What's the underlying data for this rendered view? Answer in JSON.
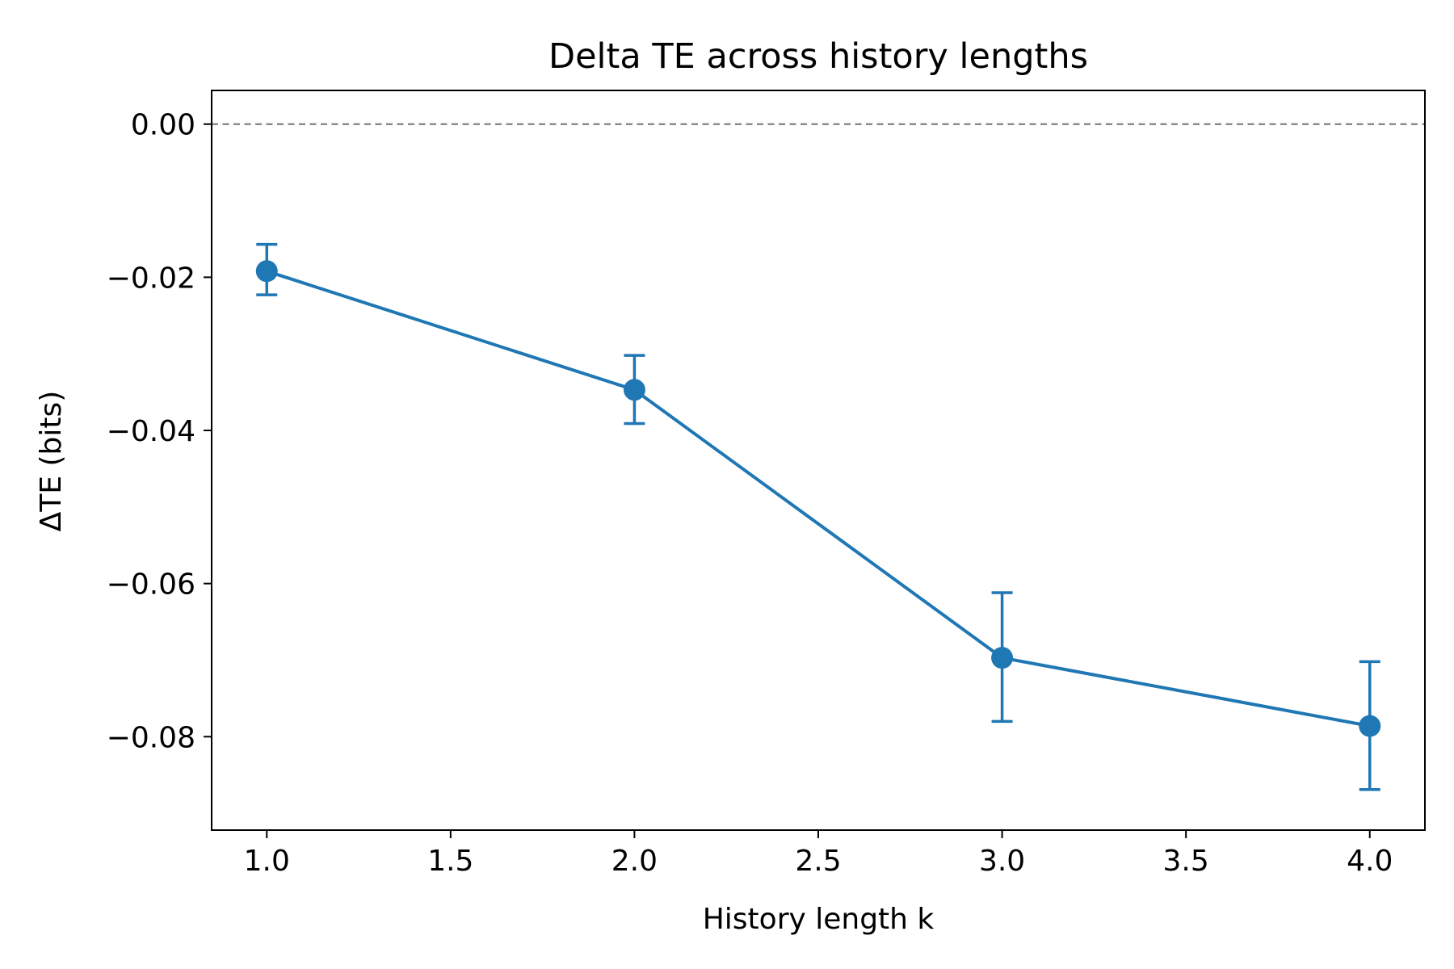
{
  "chart_data": {
    "type": "line",
    "title": "Delta TE across history lengths",
    "xlabel": "History length k",
    "ylabel": "ΔTE (bits)",
    "xlim": [
      0.85,
      4.15
    ],
    "ylim": [
      -0.0922,
      0.0044
    ],
    "x_ticks": [
      1.0,
      1.5,
      2.0,
      2.5,
      3.0,
      3.5,
      4.0
    ],
    "x_tick_labels": [
      "1.0",
      "1.5",
      "2.0",
      "2.5",
      "3.0",
      "3.5",
      "4.0"
    ],
    "y_ticks": [
      0.0,
      -0.02,
      -0.04,
      -0.06,
      -0.08
    ],
    "y_tick_labels": [
      "0.00",
      "−0.02",
      "−0.04",
      "−0.06",
      "−0.08"
    ],
    "reference_line": {
      "y": 0.0,
      "style": "dashed",
      "color": "#808080"
    },
    "grid": false,
    "series": [
      {
        "x": [
          1,
          2,
          3,
          4
        ],
        "values": [
          -0.0192,
          -0.0347,
          -0.0697,
          -0.0786
        ],
        "error_upper": [
          -0.0157,
          -0.0302,
          -0.0612,
          -0.0702
        ],
        "error_lower": [
          -0.0223,
          -0.0391,
          -0.078,
          -0.0869
        ],
        "color": "#1f77b4"
      }
    ]
  }
}
